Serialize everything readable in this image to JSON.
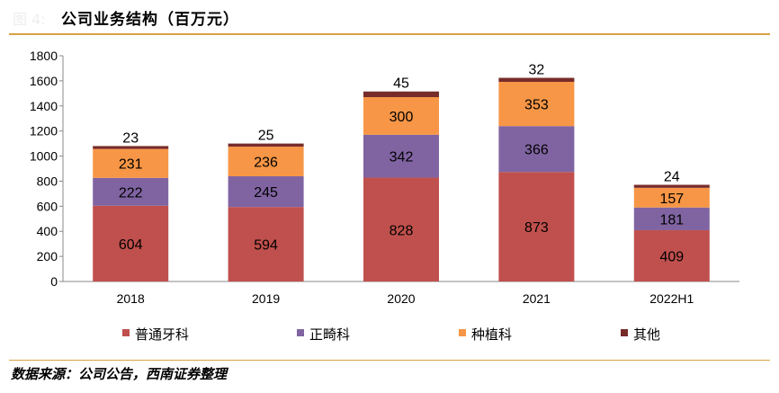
{
  "figure_label": "图 4:",
  "source": "数据来源：公司公告，西南证券整理",
  "chart_data": {
    "type": "bar",
    "stacked": true,
    "title": "公司业务结构（百万元）",
    "categories": [
      "2018",
      "2019",
      "2020",
      "2021",
      "2022H1"
    ],
    "series": [
      {
        "name": "普通牙科",
        "color": "#C0504D",
        "values": [
          604,
          594,
          828,
          873,
          409
        ]
      },
      {
        "name": "正畸科",
        "color": "#8064A2",
        "values": [
          222,
          245,
          342,
          366,
          181
        ]
      },
      {
        "name": "种植科",
        "color": "#F79646",
        "values": [
          231,
          236,
          300,
          353,
          157
        ]
      },
      {
        "name": "其他",
        "color": "#772C2A",
        "values": [
          23,
          25,
          45,
          32,
          24
        ]
      }
    ],
    "ylim": [
      0,
      1800
    ],
    "yticks": [
      0,
      200,
      400,
      600,
      800,
      1000,
      1200,
      1400,
      1600,
      1800
    ],
    "grid": false,
    "legend": "bottom"
  }
}
